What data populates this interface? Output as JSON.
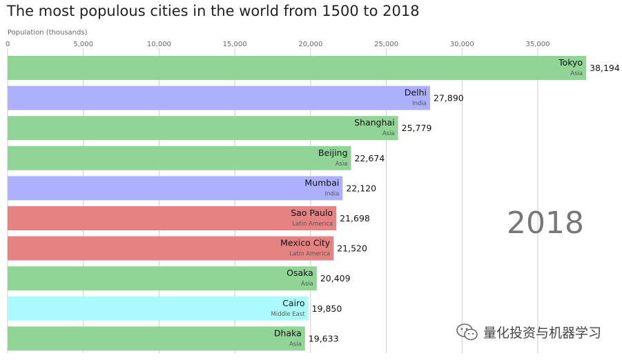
{
  "chart_data": {
    "type": "bar",
    "orientation": "horizontal",
    "title": "The most populous cities in the world from 1500 to 2018",
    "xlabel": "Population (thousands)",
    "ylabel": "",
    "year": "2018",
    "xlim": [
      0,
      38600
    ],
    "xticks": [
      0,
      5000,
      10000,
      15000,
      20000,
      25000,
      30000,
      35000
    ],
    "xtick_labels": [
      "0",
      "5,000",
      "10,000",
      "15,000",
      "20,000",
      "25,000",
      "30,000",
      "35,000"
    ],
    "grid": true,
    "categories": [
      "Tokyo",
      "Delhi",
      "Shanghai",
      "Beijing",
      "Mumbai",
      "Sao Paulo",
      "Mexico City",
      "Osaka",
      "Cairo",
      "Dhaka"
    ],
    "groups": [
      "Asia",
      "India",
      "Asia",
      "Asia",
      "India",
      "Latin America",
      "Latin America",
      "Asia",
      "Middle East",
      "Asia"
    ],
    "values": [
      38194,
      27890,
      25779,
      22674,
      22120,
      21698,
      21520,
      20409,
      19850,
      19633
    ],
    "value_labels": [
      "38,194",
      "27,890",
      "25,779",
      "22,674",
      "22,120",
      "21,698",
      "21,520",
      "20,409",
      "19,850",
      "19,633"
    ],
    "group_colors": {
      "Asia": "#90d595",
      "India": "#adb0ff",
      "Latin America": "#e48381",
      "Middle East": "#aafbff"
    }
  },
  "watermark": {
    "icon": "wechat-icon",
    "text": "量化投资与机器学习"
  }
}
